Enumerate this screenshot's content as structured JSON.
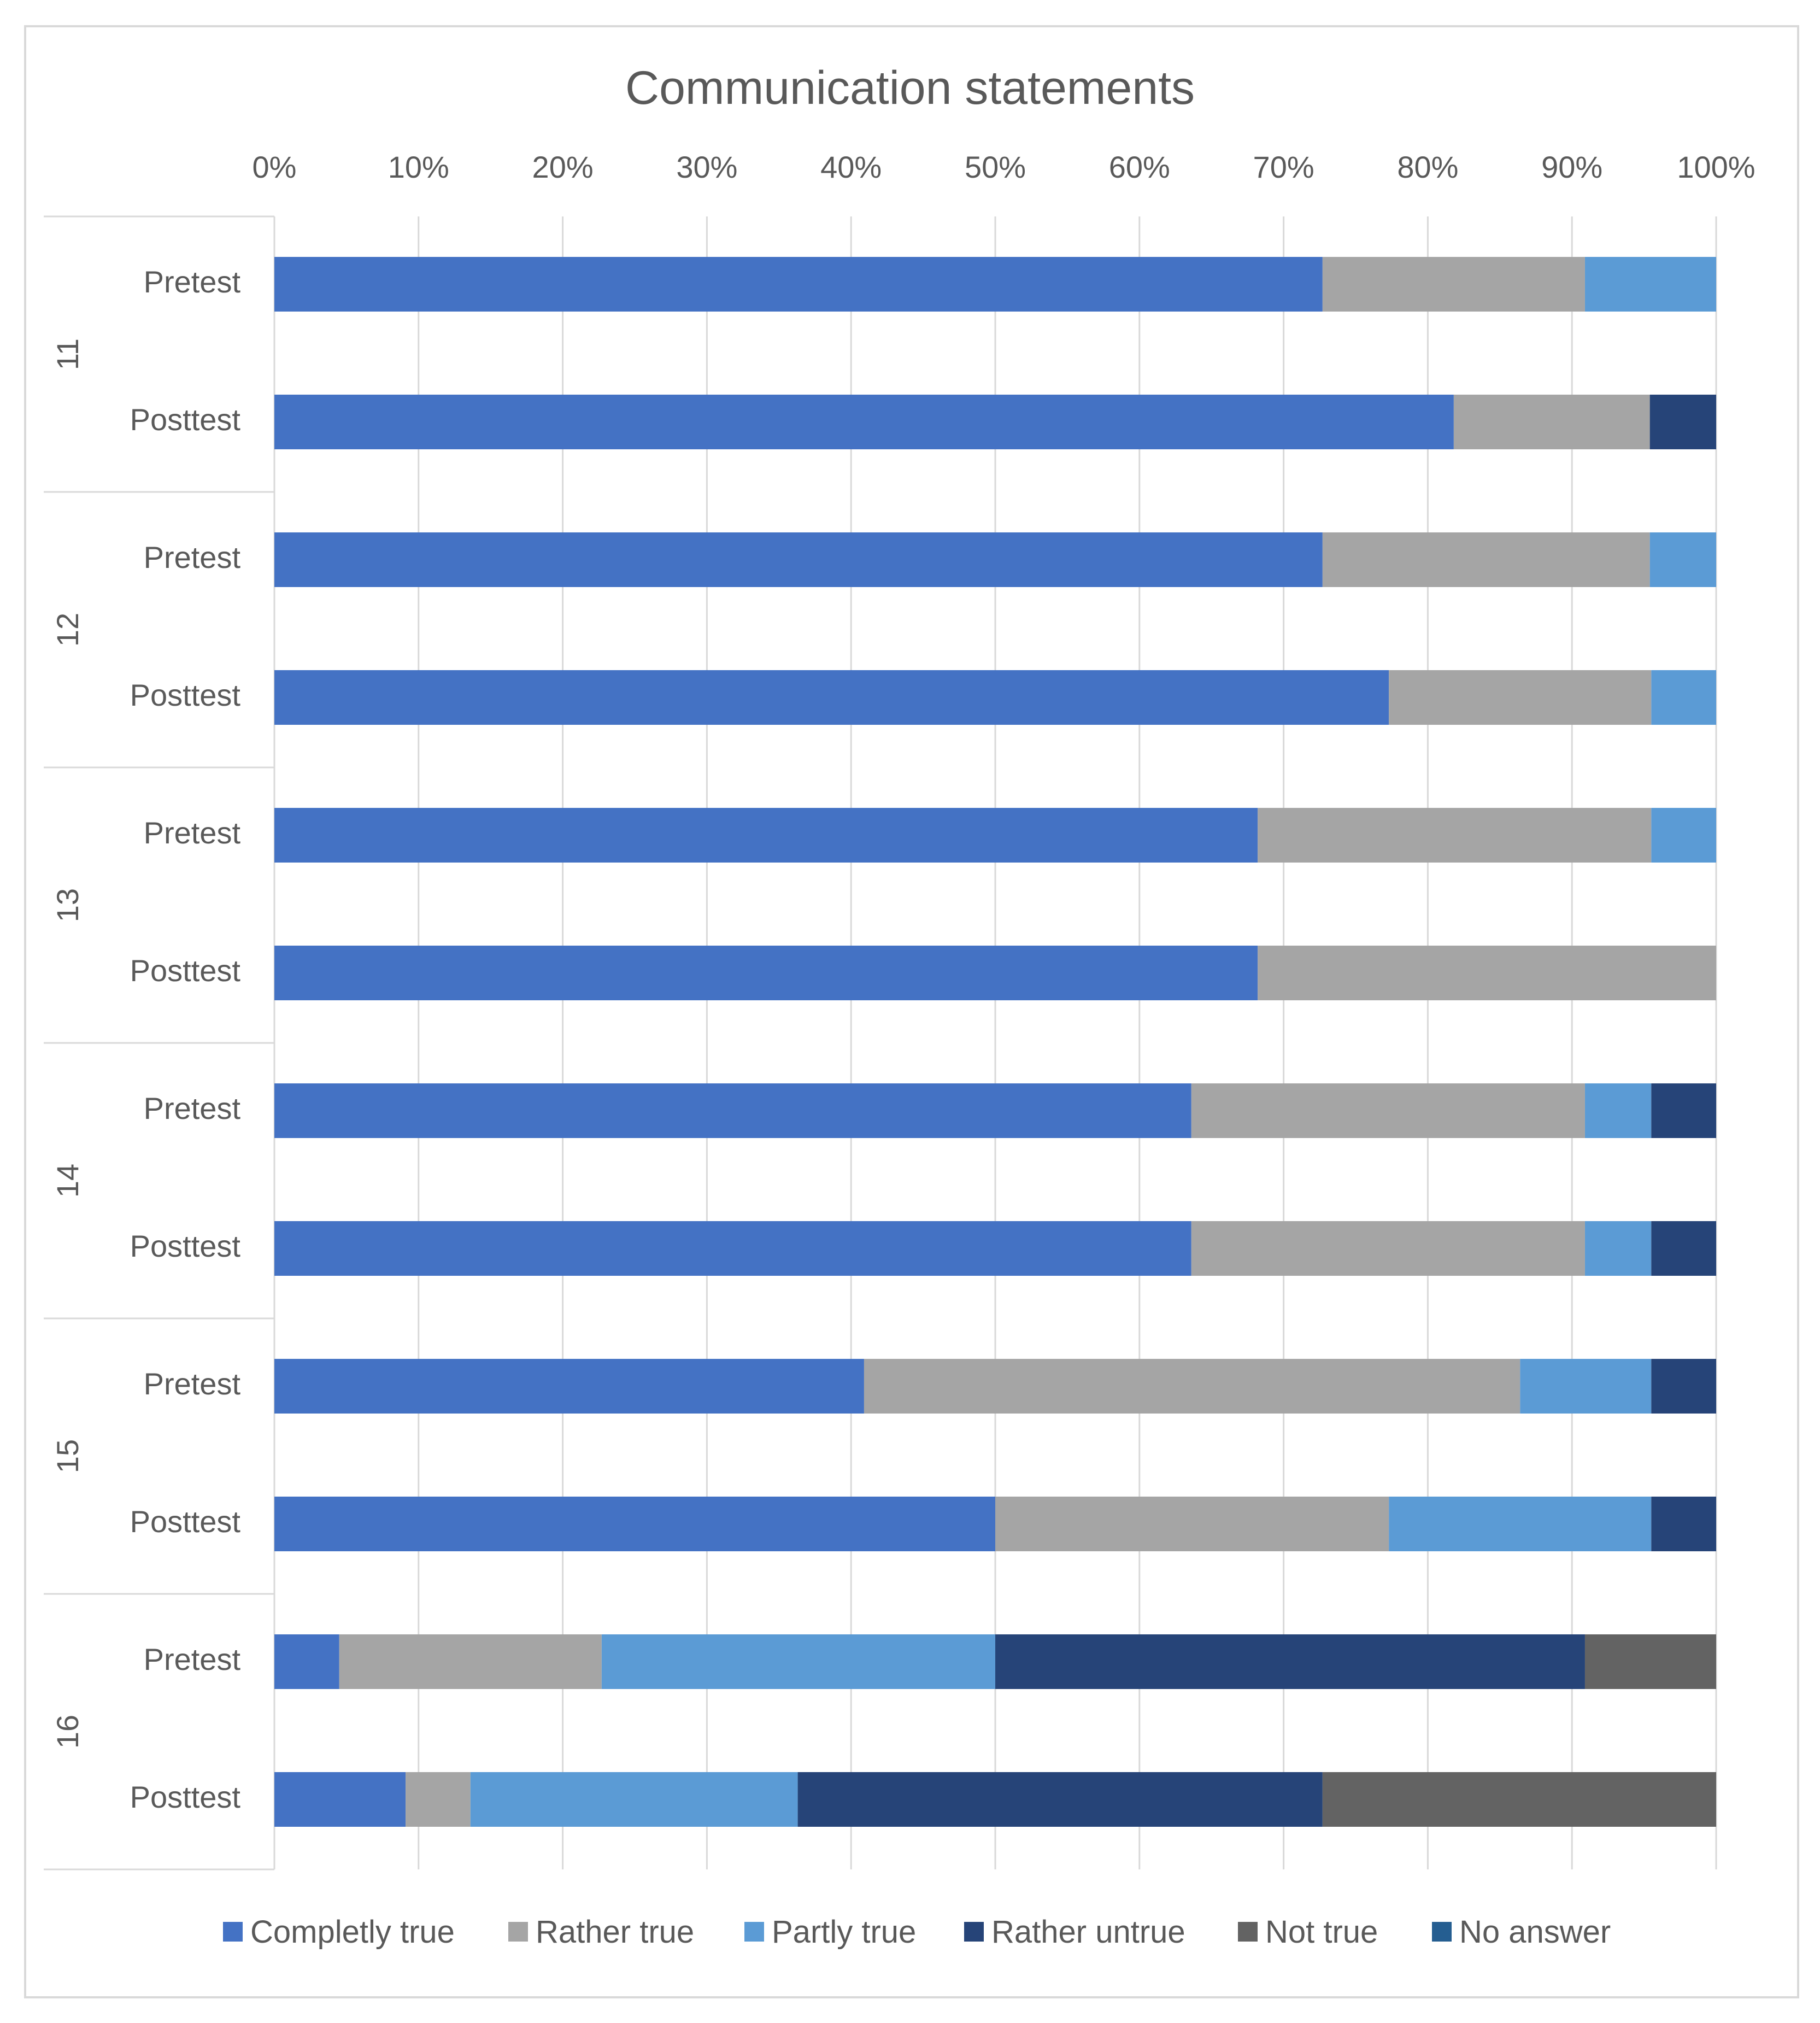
{
  "chart_data": {
    "type": "bar",
    "orientation": "horizontal",
    "stacked": "percent",
    "title": "Communication statements",
    "x_ticks": [
      "0%",
      "10%",
      "20%",
      "30%",
      "40%",
      "50%",
      "60%",
      "70%",
      "80%",
      "90%",
      "100%"
    ],
    "xlim": [
      0,
      100
    ],
    "x_axis_position": "top",
    "grid": true,
    "legend_position": "bottom",
    "groups": [
      {
        "label": "11",
        "rows": [
          {
            "label": "Pretest",
            "values": [
              72.7,
              18.2,
              9.1,
              0,
              0,
              0
            ]
          },
          {
            "label": "Posttest",
            "values": [
              81.8,
              13.6,
              0,
              4.6,
              0,
              0
            ]
          }
        ]
      },
      {
        "label": "12",
        "rows": [
          {
            "label": "Pretest",
            "values": [
              72.7,
              22.7,
              4.6,
              0,
              0,
              0
            ]
          },
          {
            "label": "Posttest",
            "values": [
              77.3,
              18.2,
              4.5,
              0,
              0,
              0
            ]
          }
        ]
      },
      {
        "label": "13",
        "rows": [
          {
            "label": "Pretest",
            "values": [
              68.2,
              27.3,
              4.5,
              0,
              0,
              0
            ]
          },
          {
            "label": "Posttest",
            "values": [
              68.2,
              31.8,
              0,
              0,
              0,
              0
            ]
          }
        ]
      },
      {
        "label": "14",
        "rows": [
          {
            "label": "Pretest",
            "values": [
              63.6,
              27.3,
              4.6,
              4.5,
              0,
              0
            ]
          },
          {
            "label": "Posttest",
            "values": [
              63.6,
              27.3,
              4.6,
              4.5,
              0,
              0
            ]
          }
        ]
      },
      {
        "label": "15",
        "rows": [
          {
            "label": "Pretest",
            "values": [
              40.9,
              45.5,
              9.1,
              4.5,
              0,
              0
            ]
          },
          {
            "label": "Posttest",
            "values": [
              50.0,
              27.3,
              18.2,
              4.5,
              0,
              0
            ]
          }
        ]
      },
      {
        "label": "16",
        "rows": [
          {
            "label": "Pretest",
            "values": [
              4.5,
              18.2,
              27.3,
              40.9,
              9.1,
              0
            ]
          },
          {
            "label": "Posttest",
            "values": [
              9.1,
              4.5,
              22.7,
              36.4,
              27.3,
              0
            ]
          }
        ]
      }
    ],
    "series": [
      {
        "name": "Completly true",
        "color": "#4472c4"
      },
      {
        "name": "Rather true",
        "color": "#a5a5a5"
      },
      {
        "name": "Partly true",
        "color": "#5b9bd5"
      },
      {
        "name": "Rather untrue",
        "color": "#264478"
      },
      {
        "name": "Not true",
        "color": "#636363"
      },
      {
        "name": "No answer",
        "color": "#255e91"
      }
    ]
  }
}
